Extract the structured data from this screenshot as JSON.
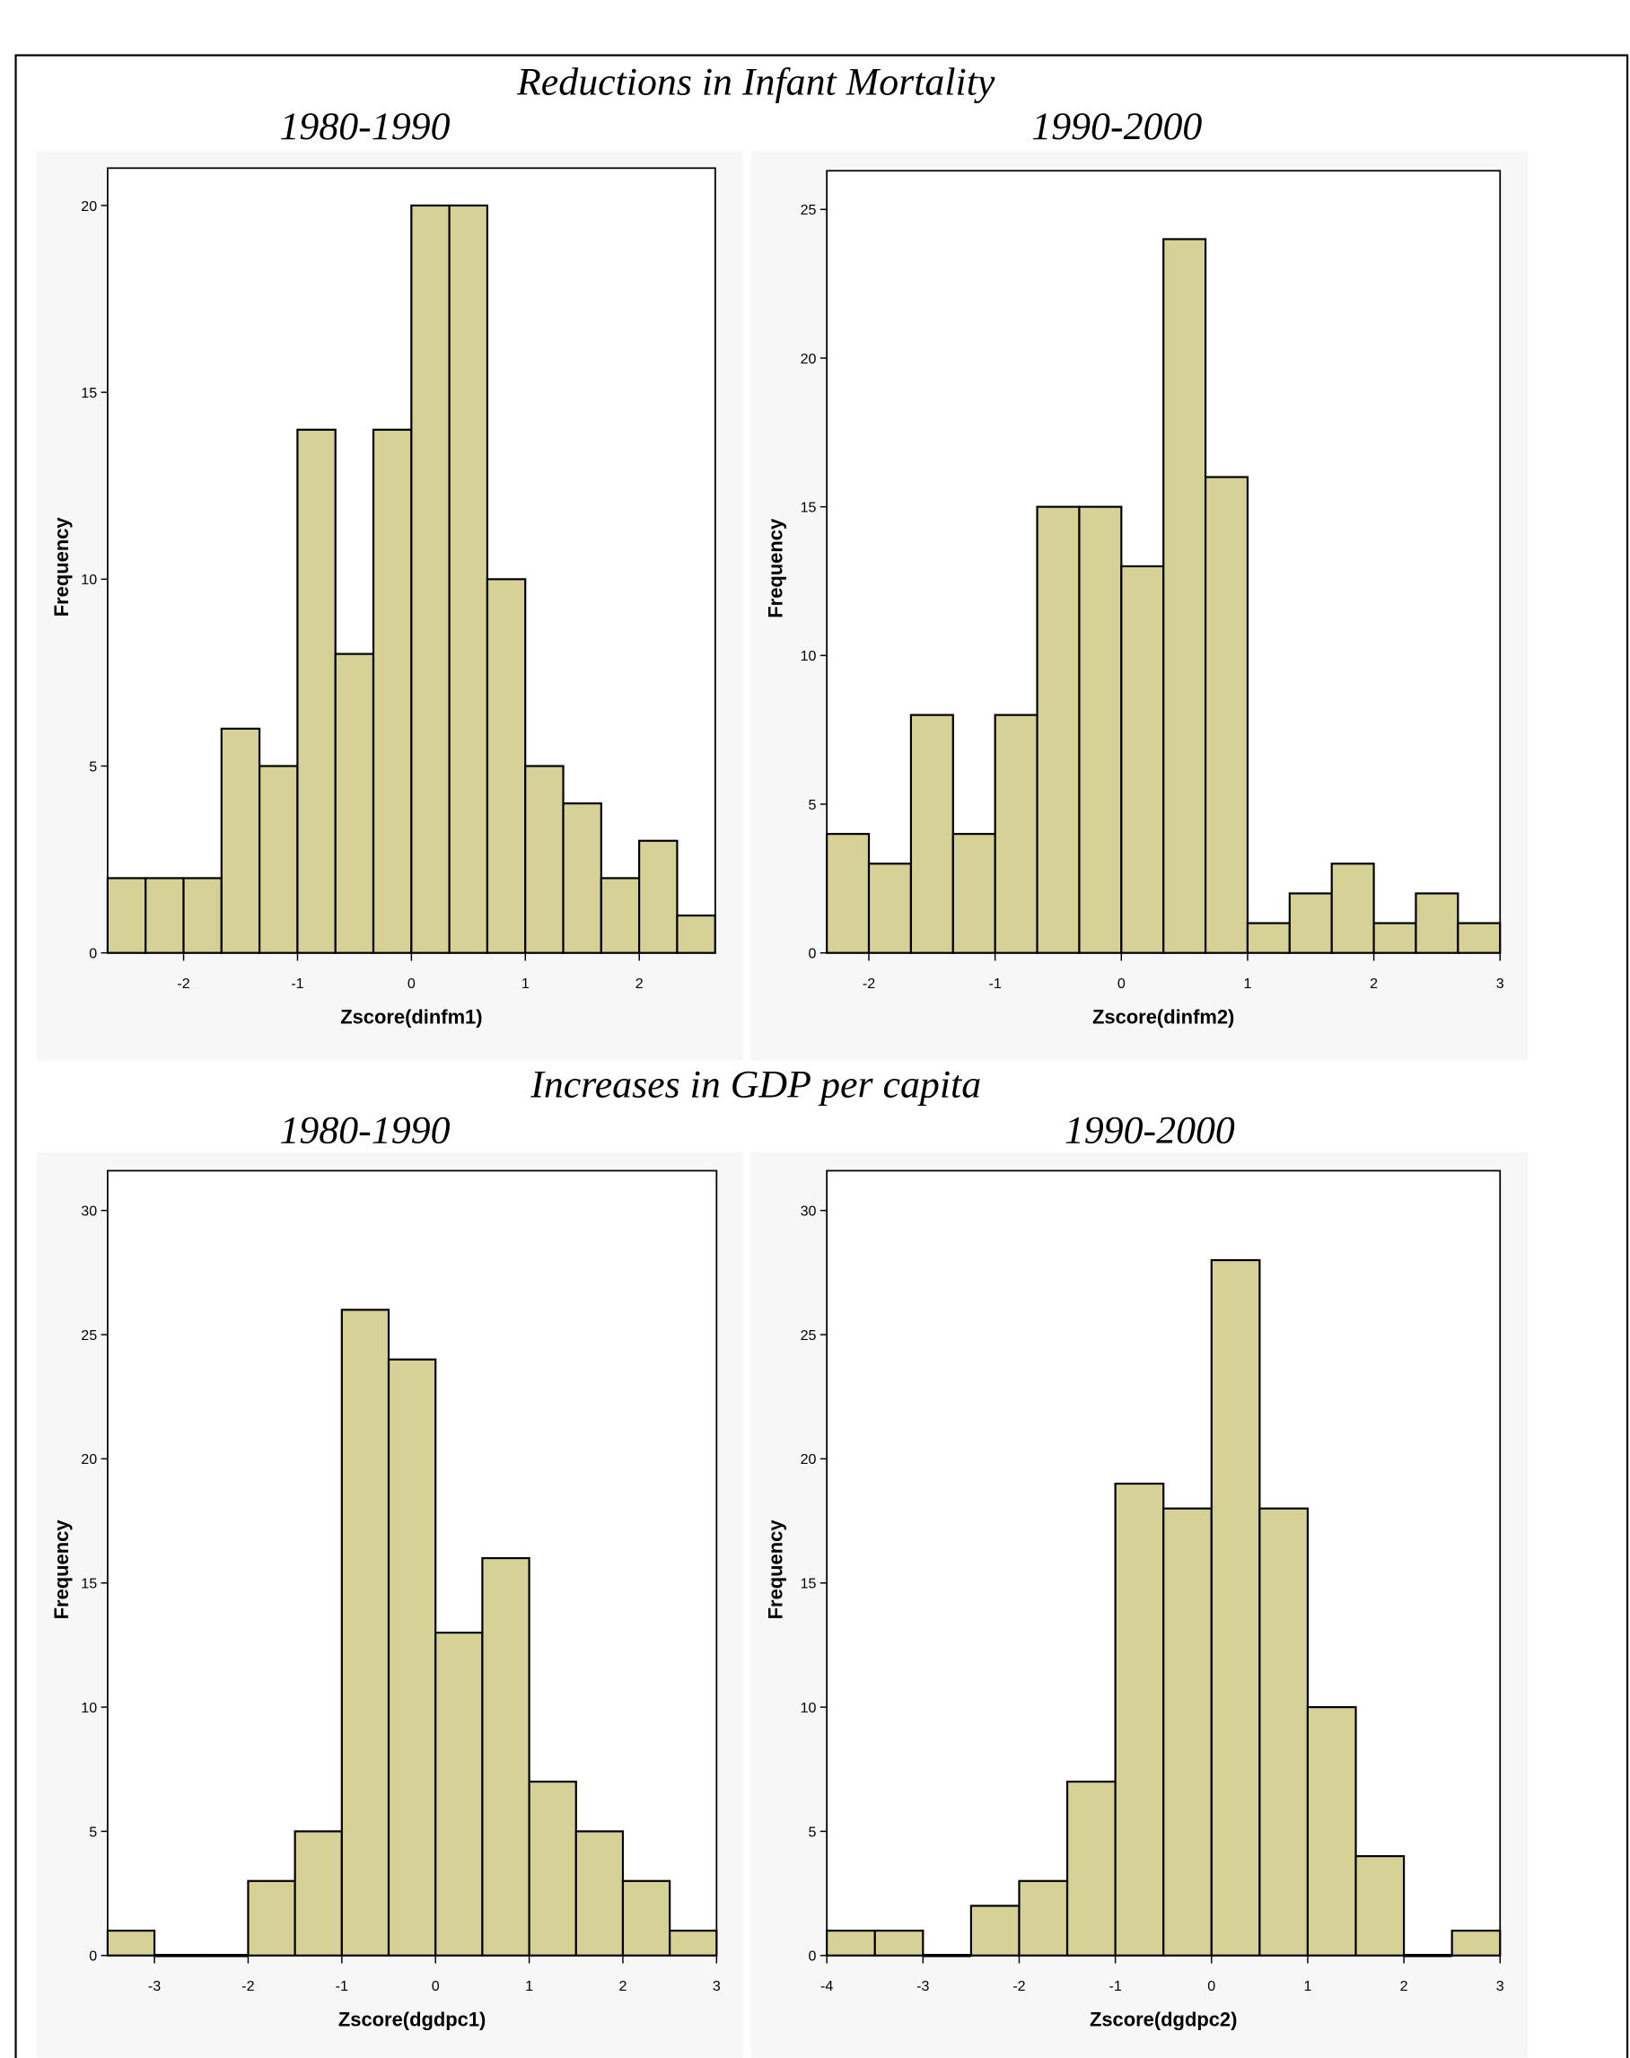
{
  "sections": [
    {
      "title": "Reductions in Infant Mortality",
      "period_left": "1980-1990",
      "period_right": "1990-2000"
    },
    {
      "title": "Increases in GDP per capita",
      "period_left": "1980-1990",
      "period_right": "1990-2000"
    }
  ],
  "colors": {
    "bar_fill": "#d6d196",
    "bar_stroke": "#000000",
    "panel_bg": "#f7f7f7"
  },
  "chart_data": [
    {
      "type": "bar",
      "subtype": "histogram",
      "xlabel": "Zscore(dinfm1)",
      "ylabel": "Frequency",
      "bin_start": -2.667,
      "bin_width": 0.3333,
      "values": [
        2,
        2,
        2,
        6,
        5,
        14,
        8,
        14,
        20,
        20,
        10,
        5,
        4,
        2,
        3,
        1
      ],
      "xlim": [
        -2.667,
        2.667
      ],
      "ylim": [
        0,
        21
      ],
      "xticks": [
        -2,
        -1,
        0,
        1,
        2
      ],
      "yticks": [
        0,
        5,
        10,
        15,
        20
      ],
      "grid": false
    },
    {
      "type": "bar",
      "subtype": "histogram",
      "xlabel": "Zscore(dinfm2)",
      "ylabel": "Frequency",
      "bin_start": -2.333,
      "bin_width": 0.3333,
      "values": [
        4,
        3,
        8,
        4,
        8,
        15,
        15,
        13,
        24,
        16,
        1,
        2,
        3,
        1,
        2,
        1
      ],
      "xlim": [
        -2.333,
        3
      ],
      "ylim": [
        0,
        26.3
      ],
      "xticks": [
        -2,
        -1,
        0,
        1,
        2,
        3
      ],
      "yticks": [
        0,
        5,
        10,
        15,
        20,
        25
      ],
      "grid": false
    },
    {
      "type": "bar",
      "subtype": "histogram",
      "xlabel": "Zscore(dgdpc1)",
      "ylabel": "Frequency",
      "bin_start": -3.5,
      "bin_width": 0.5,
      "values": [
        1,
        0,
        0,
        3,
        5,
        26,
        24,
        13,
        16,
        7,
        5,
        3,
        1
      ],
      "xlim": [
        -3.5,
        3
      ],
      "ylim": [
        0,
        31.6
      ],
      "xticks": [
        -3,
        -2,
        -1,
        0,
        1,
        2,
        3
      ],
      "yticks": [
        0,
        5,
        10,
        15,
        20,
        25,
        30
      ],
      "grid": false
    },
    {
      "type": "bar",
      "subtype": "histogram",
      "xlabel": "Zscore(dgdpc2)",
      "ylabel": "Frequency",
      "bin_start": -4,
      "bin_width": 0.5,
      "values": [
        1,
        1,
        0,
        2,
        3,
        7,
        19,
        18,
        28,
        18,
        10,
        4,
        0,
        1
      ],
      "xlim": [
        -4,
        3
      ],
      "ylim": [
        0,
        31.6
      ],
      "xticks": [
        -4,
        -3,
        -2,
        -1,
        0,
        1,
        2,
        3
      ],
      "yticks": [
        0,
        5,
        10,
        15,
        20,
        25,
        30
      ],
      "grid": false
    }
  ]
}
